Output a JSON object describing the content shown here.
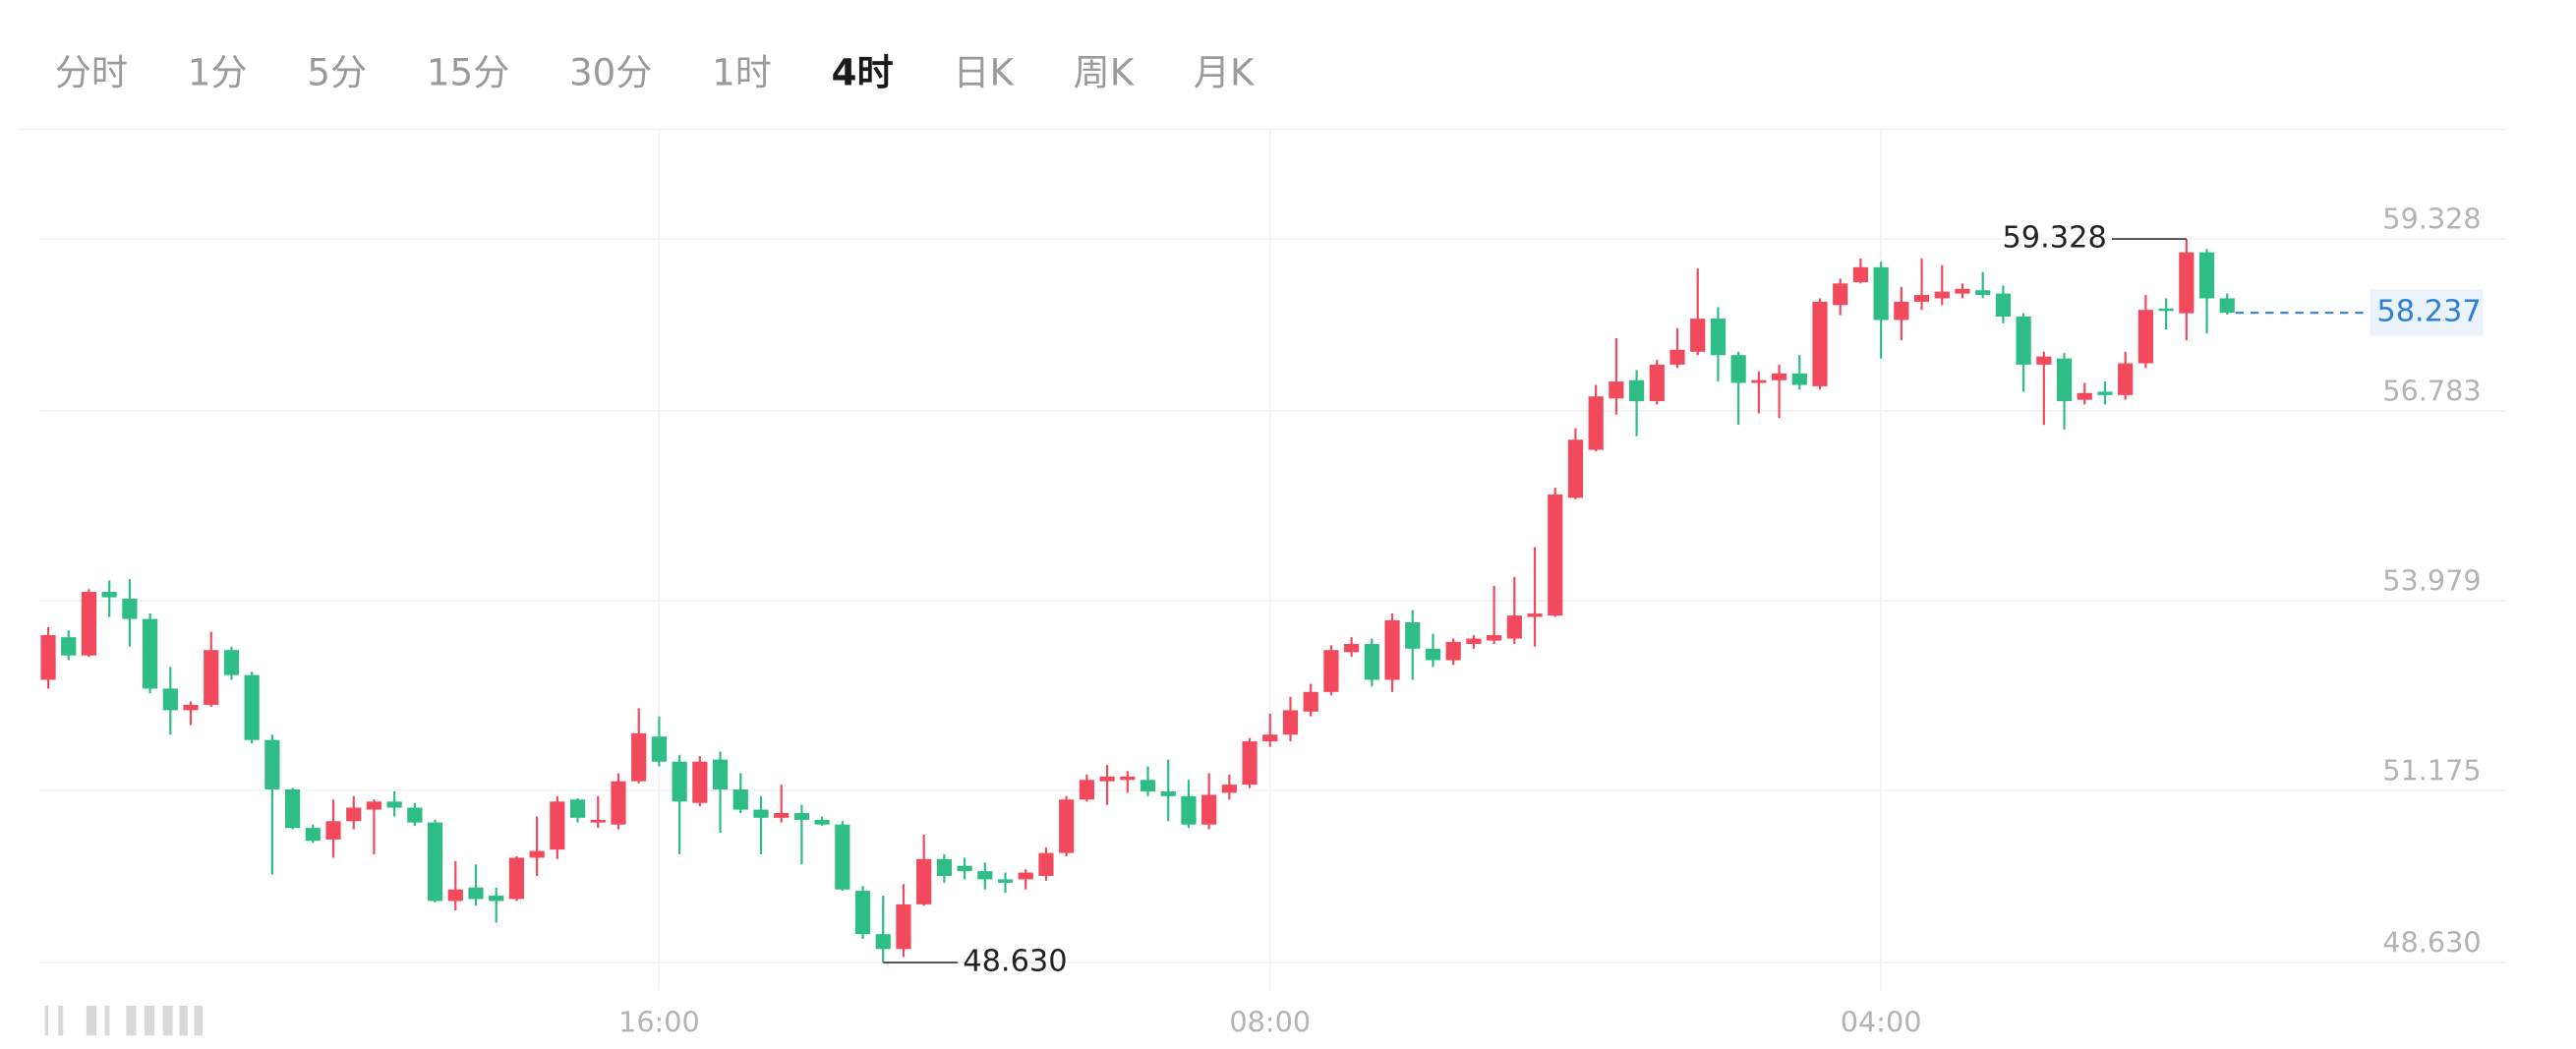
{
  "toolbar": {
    "tabs": [
      "分时",
      "1分",
      "5分",
      "15分",
      "30分",
      "1时",
      "4时",
      "日K",
      "周K",
      "月K"
    ],
    "active": 6
  },
  "chart_data": {
    "type": "candlestick",
    "categories": [
      null,
      null,
      null,
      null,
      null,
      null,
      null,
      null,
      null,
      null,
      null,
      null,
      null,
      null,
      null,
      null,
      null,
      null,
      null,
      null,
      null,
      null,
      null,
      null,
      null,
      null,
      null,
      null,
      null,
      null,
      "16:00",
      null,
      null,
      null,
      null,
      null,
      null,
      null,
      null,
      null,
      null,
      null,
      null,
      null,
      null,
      null,
      null,
      null,
      null,
      null,
      null,
      null,
      null,
      null,
      null,
      null,
      null,
      null,
      null,
      null,
      "08:00",
      null,
      null,
      null,
      null,
      null,
      null,
      null,
      null,
      null,
      null,
      null,
      null,
      null,
      null,
      null,
      null,
      null,
      null,
      null,
      null,
      null,
      null,
      null,
      null,
      null,
      null,
      null,
      null,
      null,
      "04:00",
      null,
      null,
      null,
      null,
      null,
      null,
      null,
      null,
      null,
      null,
      null,
      null,
      null,
      null,
      null,
      null,
      null
    ],
    "open": [
      52.81,
      53.44,
      53.17,
      54.11,
      54.01,
      53.71,
      52.68,
      52.36,
      52.44,
      53.25,
      52.88,
      51.92,
      51.19,
      50.62,
      50.45,
      50.72,
      50.89,
      51.01,
      50.92,
      50.7,
      49.54,
      49.74,
      49.62,
      49.57,
      50.18,
      50.3,
      51.04,
      50.7,
      50.67,
      51.31,
      51.97,
      51.6,
      50.99,
      51.63,
      51.19,
      50.89,
      50.77,
      50.84,
      50.74,
      50.67,
      49.69,
      49.05,
      48.83,
      49.49,
      50.16,
      50.06,
      49.98,
      49.86,
      49.86,
      49.91,
      50.25,
      51.04,
      51.31,
      51.33,
      51.33,
      51.16,
      51.09,
      50.67,
      51.14,
      51.26,
      51.9,
      52.0,
      52.34,
      52.63,
      53.22,
      53.34,
      52.81,
      53.66,
      53.27,
      53.1,
      53.34,
      53.39,
      53.42,
      53.74,
      53.76,
      55.5,
      56.21,
      56.97,
      57.24,
      56.93,
      57.47,
      57.66,
      58.15,
      57.61,
      57.2,
      57.24,
      57.34,
      57.15,
      58.35,
      58.69,
      58.91,
      58.13,
      58.4,
      58.45,
      58.52,
      58.57,
      58.52,
      58.18,
      57.47,
      57.56,
      56.95,
      57.07,
      57.02,
      57.49,
      58.3,
      58.23,
      59.13,
      58.45
    ],
    "high": [
      53.59,
      53.54,
      54.15,
      54.28,
      54.3,
      53.79,
      53.0,
      52.49,
      53.52,
      53.3,
      52.93,
      52.0,
      51.21,
      50.67,
      51.04,
      51.09,
      51.04,
      51.16,
      50.99,
      50.74,
      50.13,
      50.08,
      49.74,
      50.2,
      50.79,
      51.09,
      51.06,
      51.09,
      51.43,
      52.39,
      52.27,
      51.7,
      51.68,
      51.75,
      51.43,
      51.09,
      51.26,
      50.96,
      50.79,
      50.72,
      49.76,
      49.62,
      49.79,
      50.52,
      50.23,
      50.18,
      50.11,
      49.96,
      50.01,
      50.33,
      51.09,
      51.41,
      51.55,
      51.46,
      51.53,
      51.63,
      51.33,
      51.43,
      51.41,
      51.95,
      52.31,
      52.56,
      52.75,
      53.32,
      53.44,
      53.42,
      53.79,
      53.84,
      53.49,
      53.42,
      53.47,
      54.2,
      54.33,
      54.77,
      55.65,
      56.53,
      57.17,
      57.86,
      57.39,
      57.54,
      58.01,
      58.89,
      58.32,
      57.66,
      57.37,
      57.47,
      57.61,
      58.45,
      58.74,
      59.04,
      58.99,
      58.62,
      59.04,
      58.94,
      58.67,
      58.84,
      58.64,
      58.23,
      57.66,
      57.64,
      57.2,
      57.22,
      57.66,
      58.5,
      58.45,
      59.328,
      59.18,
      58.52
    ],
    "low": [
      52.68,
      53.1,
      53.15,
      53.74,
      53.3,
      52.61,
      52.0,
      52.14,
      52.41,
      52.81,
      51.87,
      49.93,
      50.6,
      50.4,
      50.18,
      50.6,
      50.23,
      50.79,
      50.65,
      49.52,
      49.4,
      49.47,
      49.22,
      49.54,
      49.91,
      50.16,
      50.7,
      50.62,
      50.6,
      51.28,
      51.53,
      50.23,
      50.94,
      50.55,
      50.84,
      50.23,
      50.7,
      50.08,
      50.65,
      49.69,
      48.98,
      48.63,
      48.71,
      49.47,
      49.81,
      49.86,
      49.71,
      49.66,
      49.71,
      49.84,
      50.2,
      51.01,
      50.96,
      51.14,
      51.09,
      50.72,
      50.62,
      50.6,
      51.04,
      51.21,
      51.82,
      51.9,
      52.27,
      52.58,
      53.15,
      52.71,
      52.63,
      52.81,
      53.0,
      53.03,
      53.27,
      53.34,
      53.34,
      53.3,
      53.74,
      55.48,
      56.19,
      56.73,
      56.41,
      56.88,
      57.42,
      57.61,
      57.22,
      56.58,
      56.75,
      56.68,
      57.1,
      57.1,
      58.2,
      58.67,
      57.56,
      57.83,
      58.28,
      58.35,
      58.45,
      58.45,
      58.08,
      57.07,
      56.58,
      56.51,
      56.88,
      56.88,
      56.95,
      57.42,
      57.99,
      57.83,
      57.93,
      58.21
    ],
    "close": [
      53.47,
      53.17,
      54.11,
      54.03,
      53.71,
      52.68,
      52.36,
      52.44,
      53.25,
      52.88,
      51.92,
      51.19,
      50.62,
      50.43,
      50.72,
      50.92,
      51.01,
      50.92,
      50.7,
      49.54,
      49.71,
      49.57,
      49.54,
      50.18,
      50.28,
      51.01,
      50.77,
      50.74,
      51.31,
      52.02,
      51.6,
      51.01,
      51.6,
      51.19,
      50.89,
      50.77,
      50.84,
      50.74,
      50.67,
      49.71,
      49.05,
      48.83,
      49.49,
      50.16,
      49.91,
      49.98,
      49.86,
      49.81,
      49.96,
      50.25,
      51.04,
      51.33,
      51.38,
      51.38,
      51.16,
      51.09,
      50.67,
      51.11,
      51.26,
      51.9,
      52.0,
      52.36,
      52.63,
      53.25,
      53.34,
      52.81,
      53.69,
      53.27,
      53.1,
      53.37,
      53.42,
      53.47,
      53.76,
      53.79,
      55.55,
      56.36,
      57.0,
      57.22,
      56.93,
      57.47,
      57.69,
      58.15,
      57.61,
      57.2,
      57.24,
      57.34,
      57.17,
      58.4,
      58.67,
      58.91,
      58.13,
      58.4,
      58.5,
      58.55,
      58.59,
      58.5,
      58.18,
      57.47,
      57.59,
      56.93,
      57.05,
      57.02,
      57.49,
      58.28,
      58.28,
      59.13,
      58.45,
      58.237
    ],
    "up_color": "#f2495c",
    "down_color": "#2dbd85",
    "ylim": [
      48.213,
      60.947
    ],
    "yticks": [
      59.328,
      56.783,
      53.979,
      51.175,
      {
        "value": 48.63,
        "label": "48.630"
      }
    ],
    "max_label": "59.328",
    "min_label": "48.630",
    "last_label": "58.237",
    "grid": true
  }
}
